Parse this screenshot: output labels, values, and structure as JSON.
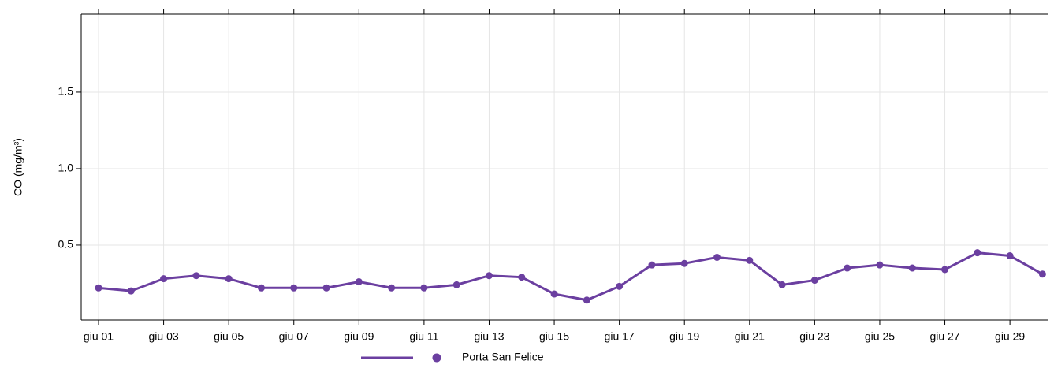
{
  "chart_data": {
    "type": "line",
    "y_label": "CO (mg/m³)",
    "categories": [
      "giu 01",
      null,
      "giu 03",
      null,
      "giu 05",
      null,
      "giu 07",
      null,
      "giu 09",
      null,
      "giu 11",
      null,
      "giu 13",
      null,
      "giu 15",
      null,
      "giu 17",
      null,
      "giu 19",
      null,
      "giu 21",
      null,
      "giu 23",
      null,
      "giu 25",
      null,
      "giu 27",
      null,
      "giu 29",
      null
    ],
    "series": [
      {
        "name": "Porta San Felice",
        "color": "#6b3fa0",
        "values": [
          0.22,
          0.2,
          0.28,
          0.3,
          0.28,
          0.22,
          0.22,
          0.22,
          0.26,
          0.22,
          0.22,
          0.24,
          0.3,
          0.29,
          0.18,
          0.14,
          0.23,
          0.37,
          0.38,
          0.42,
          0.4,
          0.24,
          0.27,
          0.35,
          0.37,
          0.35,
          0.34,
          0.45,
          0.43,
          0.31
        ]
      }
    ],
    "ylim": [
      0.01,
      2.01
    ],
    "yticks": [
      0.5,
      {
        "value": 1,
        "label": "1.0"
      },
      1.5
    ],
    "grid": true,
    "legend": "bottom"
  }
}
